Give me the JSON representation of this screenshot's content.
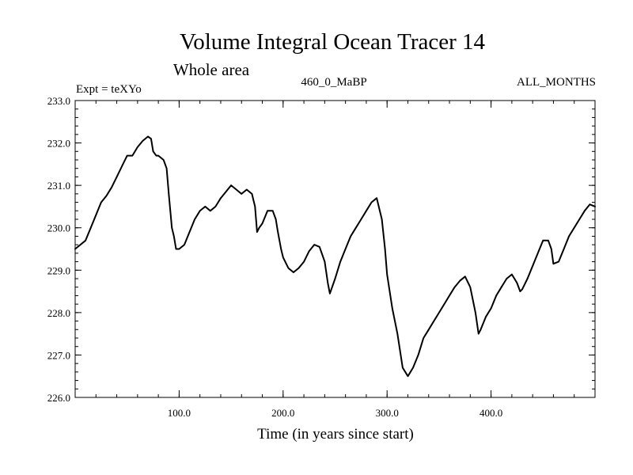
{
  "chart_data": {
    "type": "line",
    "title": "Volume Integral Ocean Tracer 14",
    "subtitle": "Whole area",
    "annotations": {
      "left": "Expt = teXYo",
      "center": "460_0_MaBP",
      "right": "ALL_MONTHS"
    },
    "xlabel": "Time (in years since start)",
    "ylabel": "",
    "xlim": [
      0,
      500
    ],
    "ylim": [
      226.0,
      233.0
    ],
    "xticks": [
      100,
      200,
      300,
      400
    ],
    "xtick_labels": [
      "100.0",
      "200.0",
      "300.0",
      "400.0"
    ],
    "yticks": [
      226,
      227,
      228,
      229,
      230,
      231,
      232,
      233
    ],
    "ytick_labels": [
      "226.0",
      "227.0",
      "228.0",
      "229.0",
      "230.0",
      "231.0",
      "232.0",
      "233.0"
    ],
    "grid": false,
    "series": [
      {
        "color": "#000000",
        "x": [
          0,
          5,
          10,
          15,
          20,
          25,
          30,
          35,
          40,
          45,
          50,
          55,
          60,
          65,
          70,
          73,
          75,
          78,
          80,
          85,
          88,
          90,
          93,
          95,
          97,
          100,
          105,
          110,
          115,
          120,
          125,
          130,
          135,
          140,
          145,
          150,
          155,
          160,
          165,
          170,
          173,
          175,
          177,
          180,
          185,
          190,
          193,
          195,
          198,
          200,
          205,
          210,
          215,
          220,
          225,
          230,
          235,
          240,
          243,
          245,
          250,
          255,
          260,
          265,
          270,
          275,
          280,
          285,
          290,
          295,
          298,
          300,
          305,
          310,
          315,
          320,
          325,
          330,
          335,
          340,
          345,
          350,
          355,
          360,
          365,
          370,
          375,
          380,
          385,
          388,
          390,
          395,
          400,
          405,
          410,
          415,
          420,
          425,
          428,
          430,
          435,
          440,
          445,
          450,
          455,
          458,
          460,
          465,
          470,
          475,
          480,
          485,
          490,
          495,
          500
        ],
        "values": [
          229.5,
          229.6,
          229.7,
          230.0,
          230.3,
          230.6,
          230.75,
          230.95,
          231.2,
          231.45,
          231.7,
          231.7,
          231.9,
          232.05,
          232.15,
          232.1,
          231.8,
          231.7,
          231.7,
          231.6,
          231.4,
          230.8,
          230.0,
          229.8,
          229.5,
          229.5,
          229.6,
          229.9,
          230.2,
          230.4,
          230.5,
          230.4,
          230.5,
          230.7,
          230.85,
          231.0,
          230.9,
          230.8,
          230.9,
          230.8,
          230.5,
          229.9,
          230.0,
          230.1,
          230.4,
          230.4,
          230.2,
          229.9,
          229.5,
          229.3,
          229.05,
          228.95,
          229.05,
          229.2,
          229.45,
          229.6,
          229.55,
          229.2,
          228.7,
          228.45,
          228.8,
          229.2,
          229.5,
          229.8,
          230.0,
          230.2,
          230.4,
          230.6,
          230.7,
          230.2,
          229.5,
          228.9,
          228.1,
          227.5,
          226.7,
          226.5,
          226.7,
          227.0,
          227.4,
          227.6,
          227.8,
          228.0,
          228.2,
          228.4,
          228.6,
          228.75,
          228.85,
          228.6,
          228.0,
          227.5,
          227.6,
          227.9,
          228.1,
          228.4,
          228.6,
          228.8,
          228.9,
          228.7,
          228.5,
          228.55,
          228.8,
          229.1,
          229.4,
          229.7,
          229.7,
          229.5,
          229.15,
          229.2,
          229.5,
          229.8,
          230.0,
          230.2,
          230.4,
          230.55,
          230.5
        ]
      }
    ]
  }
}
